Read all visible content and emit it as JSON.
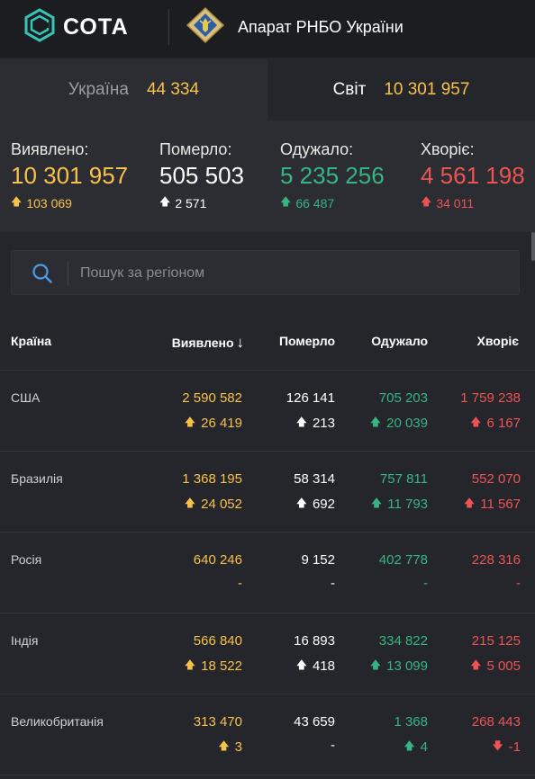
{
  "header": {
    "logo_text": "СОТА",
    "org_name": "Апарат РНБО України"
  },
  "tabs": [
    {
      "label": "Україна",
      "value": "44 334",
      "active": false
    },
    {
      "label": "Світ",
      "value": "10 301 957",
      "active": true
    }
  ],
  "summary": {
    "detected": {
      "label": "Виявлено:",
      "value": "10 301 957",
      "delta": "103 069"
    },
    "died": {
      "label": "Померло:",
      "value": "505 503",
      "delta": "2 571"
    },
    "recovered": {
      "label": "Одужало:",
      "value": "5 235 256",
      "delta": "66 487"
    },
    "sick": {
      "label": "Хворіє:",
      "value": "4 561 198",
      "delta": "34 011"
    }
  },
  "search": {
    "placeholder": "Пошук за регіоном"
  },
  "table": {
    "headers": {
      "country": "Країна",
      "cases": "Виявлено",
      "deaths": "Померло",
      "recovered": "Одужало",
      "active": "Хворіє"
    },
    "rows": [
      {
        "country": "США",
        "cases": "2 590 582",
        "cases_delta": "26 419",
        "deaths": "126 141",
        "deaths_delta": "213",
        "recovered": "705 203",
        "recovered_delta": "20 039",
        "active": "1 759 238",
        "active_delta": "6 167"
      },
      {
        "country": "Бразилія",
        "cases": "1 368 195",
        "cases_delta": "24 052",
        "deaths": "58 314",
        "deaths_delta": "692",
        "recovered": "757 811",
        "recovered_delta": "11 793",
        "active": "552 070",
        "active_delta": "11 567"
      },
      {
        "country": "Росія",
        "cases": "640 246",
        "cases_delta": "-",
        "deaths": "9 152",
        "deaths_delta": "-",
        "recovered": "402 778",
        "recovered_delta": "-",
        "active": "228 316",
        "active_delta": "-"
      },
      {
        "country": "Індія",
        "cases": "566 840",
        "cases_delta": "18 522",
        "deaths": "16 893",
        "deaths_delta": "418",
        "recovered": "334 822",
        "recovered_delta": "13 099",
        "active": "215 125",
        "active_delta": "5 005"
      },
      {
        "country": "Великобританія",
        "cases": "313 470",
        "cases_delta": "3",
        "deaths": "43 659",
        "deaths_delta": "-",
        "recovered": "1 368",
        "recovered_delta": "4",
        "active": "268 443",
        "active_delta": "-1"
      }
    ]
  },
  "colors": {
    "cases": "#f8c14a",
    "deaths": "#ffffff",
    "recovered": "#34b581",
    "active": "#ee5353",
    "accent": "#35c6b8",
    "search_icon": "#4a9be6"
  },
  "icons": {
    "logo": "cota-logo-icon",
    "emblem": "rnbo-emblem-icon",
    "search": "search-icon",
    "sort": "sort-down-arrow-icon",
    "up": "arrow-up-icon",
    "down": "arrow-down-icon"
  }
}
